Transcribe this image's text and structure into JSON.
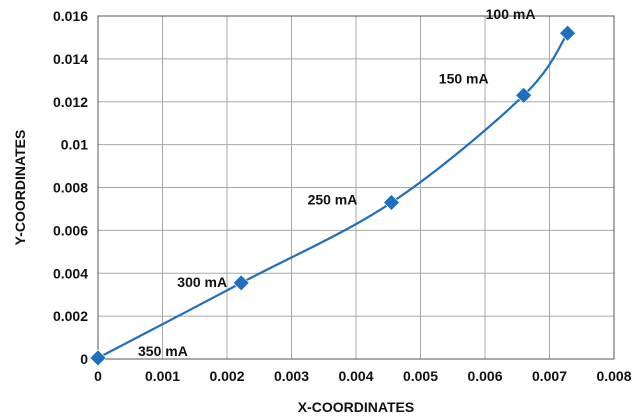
{
  "colors": {
    "series": "#1f6fbf",
    "grid": "#a8a8a8",
    "text": "#111111"
  },
  "chart_data": {
    "type": "scatter",
    "title": "",
    "xlabel": "X-COORDINATES",
    "ylabel": "Y-COORDINATES",
    "xlim": [
      0,
      0.008
    ],
    "ylim": [
      0,
      0.016
    ],
    "x_ticks": [
      "0",
      "0.001",
      "0.002",
      "0.003",
      "0.004",
      "0.005",
      "0.006",
      "0.007",
      "0.008"
    ],
    "y_ticks": [
      "0",
      "0.002",
      "0.004",
      "0.006",
      "0.008",
      "0.01",
      "0.012",
      "0.014",
      "0.016"
    ],
    "grid": true,
    "marker": "diamond",
    "line": "smooth",
    "series": [
      {
        "points": [
          {
            "x": 0.0,
            "y": 5e-05,
            "label": "350 mA"
          },
          {
            "x": 0.00222,
            "y": 0.00355,
            "label": "300 mA"
          },
          {
            "x": 0.00455,
            "y": 0.0073,
            "label": "250 mA"
          },
          {
            "x": 0.0066,
            "y": 0.0123,
            "label": "150 mA"
          },
          {
            "x": 0.00728,
            "y": 0.0152,
            "label": "100 mA"
          }
        ]
      }
    ]
  }
}
